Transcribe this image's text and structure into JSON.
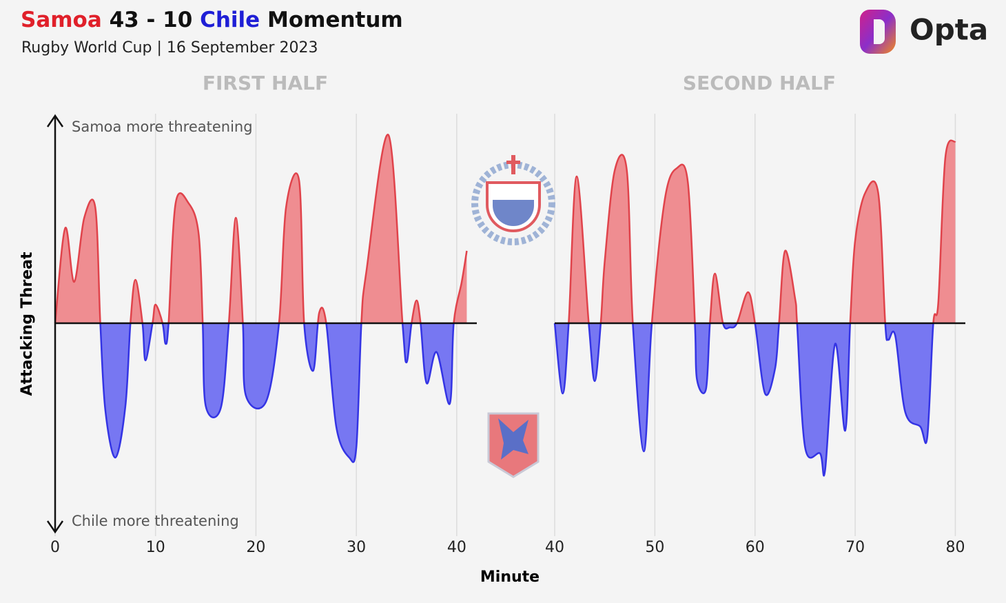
{
  "header": {
    "title_parts": [
      "Samoa",
      "43 - 10",
      "Chile",
      "Momentum"
    ],
    "title_colors": [
      "#e0202a",
      "#111111",
      "#1f1fd6",
      "#111111"
    ],
    "subtitle": "Rugby World Cup | 16 September 2023",
    "brand": "Opta"
  },
  "y_label": "Attacking Threat",
  "x_label": "Minute",
  "annotations": [
    "Samoa more threatening",
    "Chile more threatening"
  ],
  "positive_color": "#e0434b",
  "positive_fill": "#ef8d91",
  "negative_color": "#3434e4",
  "negative_fill": "#7777f2",
  "chart_data": [
    {
      "type": "area",
      "title": "FIRST HALF",
      "xlim": [
        0,
        42
      ],
      "ylim": [
        -1,
        1
      ],
      "xticks": [
        0,
        10,
        20,
        30,
        40
      ],
      "grid": true,
      "x": [
        0,
        1,
        1.9,
        2.9,
        4,
        4.5,
        5,
        6,
        7,
        7.5,
        8,
        8.7,
        9,
        9.7,
        10,
        10.7,
        11,
        11.3,
        12,
        13.3,
        14.3,
        14.7,
        15,
        16.5,
        17.3,
        18,
        18.7,
        19,
        21,
        22.3,
        23,
        24.3,
        24.8,
        25.7,
        26.3,
        27,
        28,
        29.3,
        30,
        30.5,
        31,
        33.2,
        34.6,
        35,
        35.5,
        36,
        36.4,
        37,
        38,
        39.3,
        39.7,
        40.5,
        41
      ],
      "values": [
        0,
        0.46,
        0.2,
        0.51,
        0.56,
        0,
        -0.42,
        -0.65,
        -0.4,
        0,
        0.21,
        0,
        -0.18,
        0,
        0.09,
        0,
        -0.1,
        0,
        0.58,
        0.58,
        0.43,
        0,
        -0.4,
        -0.41,
        0,
        0.51,
        0,
        -0.35,
        -0.38,
        0,
        0.56,
        0.69,
        0,
        -0.23,
        0.05,
        0,
        -0.5,
        -0.65,
        -0.6,
        0,
        0.25,
        0.91,
        0,
        -0.19,
        0,
        0.11,
        0,
        -0.29,
        -0.14,
        -0.39,
        0,
        0.2,
        0.35
      ]
    },
    {
      "type": "area",
      "title": "SECOND HALF",
      "xlim": [
        40,
        81
      ],
      "ylim": [
        -1,
        1
      ],
      "xticks": [
        40,
        50,
        60,
        70,
        80
      ],
      "grid": true,
      "x": [
        40,
        40.8,
        41.4,
        42.2,
        43.4,
        44,
        44.6,
        45,
        46,
        47.2,
        47.8,
        48.9,
        49.7,
        51,
        52.2,
        53.3,
        54,
        54.2,
        55.1,
        55.5,
        56,
        56.8,
        57.5,
        58.2,
        59.3,
        60,
        61,
        62,
        62.4,
        63,
        64,
        64.2,
        65,
        66.5,
        67,
        68,
        69,
        69.5,
        70,
        71,
        72.3,
        73,
        73.3,
        74,
        75,
        76.5,
        77.2,
        77.8,
        78.3,
        79,
        80
      ],
      "values": [
        0,
        -0.34,
        0,
        0.71,
        0,
        -0.28,
        0,
        0.3,
        0.74,
        0.74,
        0,
        -0.62,
        0,
        0.6,
        0.75,
        0.68,
        0,
        -0.27,
        -0.32,
        0,
        0.24,
        0,
        -0.02,
        0,
        0.15,
        0,
        -0.34,
        -0.22,
        0,
        0.35,
        0.12,
        0,
        -0.6,
        -0.63,
        -0.71,
        -0.1,
        -0.52,
        0,
        0.4,
        0.63,
        0.63,
        0,
        -0.08,
        -0.06,
        -0.43,
        -0.5,
        -0.55,
        0,
        0.1,
        0.8,
        0.88
      ]
    }
  ]
}
